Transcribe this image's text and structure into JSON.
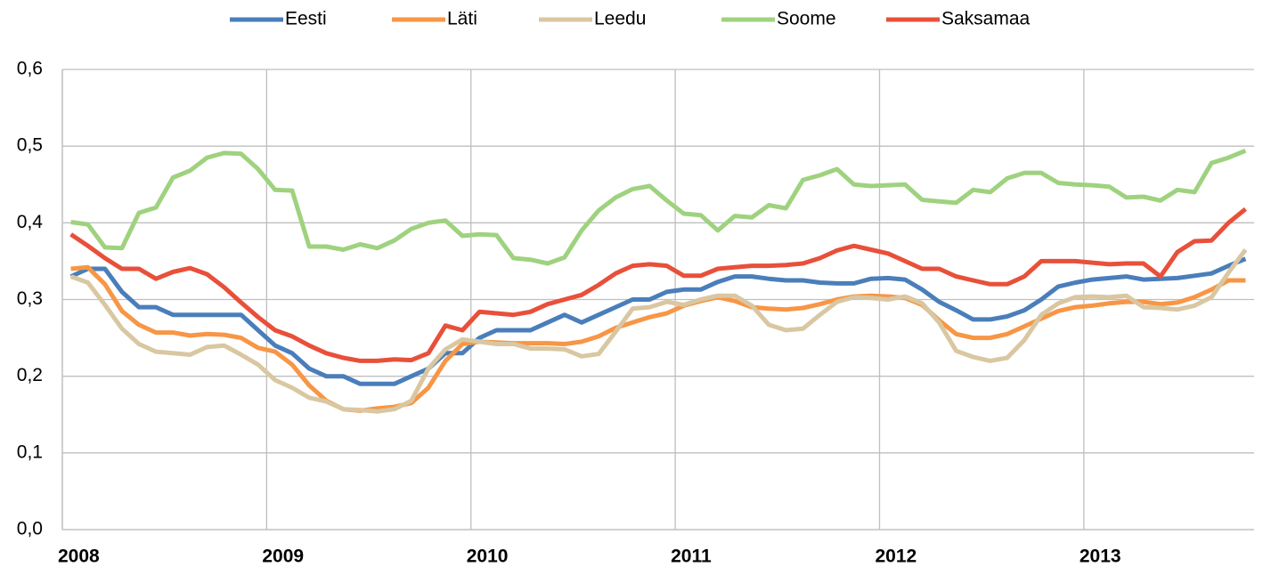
{
  "chart_data": {
    "type": "line",
    "categories": [
      "2008",
      null,
      null,
      null,
      null,
      null,
      null,
      null,
      null,
      null,
      null,
      null,
      "2009",
      null,
      null,
      null,
      null,
      null,
      null,
      null,
      null,
      null,
      null,
      null,
      "2010",
      null,
      null,
      null,
      null,
      null,
      null,
      null,
      null,
      null,
      null,
      null,
      "2011",
      null,
      null,
      null,
      null,
      null,
      null,
      null,
      null,
      null,
      null,
      null,
      "2012",
      null,
      null,
      null,
      null,
      null,
      null,
      null,
      null,
      null,
      null,
      null,
      "2013",
      null,
      null,
      null,
      null,
      null,
      null,
      null,
      null,
      null
    ],
    "series": [
      {
        "name": "Eesti",
        "color": "#4a7ebb",
        "values": [
          0.33,
          0.34,
          0.34,
          0.31,
          0.29,
          0.29,
          0.28,
          0.28,
          0.28,
          0.28,
          0.28,
          0.26,
          0.24,
          0.23,
          0.21,
          0.2,
          0.2,
          0.19,
          0.19,
          0.19,
          0.2,
          0.21,
          0.23,
          0.23,
          0.25,
          0.26,
          0.26,
          0.26,
          0.27,
          0.28,
          0.27,
          0.28,
          0.29,
          0.3,
          0.3,
          0.31,
          0.313,
          0.313,
          0.323,
          0.33,
          0.33,
          0.327,
          0.325,
          0.325,
          0.322,
          0.321,
          0.321,
          0.327,
          0.328,
          0.326,
          0.313,
          0.297,
          0.286,
          0.274,
          0.274,
          0.278,
          0.286,
          0.3,
          0.317,
          0.322,
          0.326,
          0.328,
          0.33,
          0.326,
          0.327,
          0.328,
          0.331,
          0.334,
          0.344,
          0.353
        ]
      },
      {
        "name": "Läti",
        "color": "#f79646",
        "values": [
          0.34,
          0.342,
          0.32,
          0.285,
          0.267,
          0.257,
          0.257,
          0.253,
          0.255,
          0.254,
          0.25,
          0.237,
          0.232,
          0.215,
          0.188,
          0.168,
          0.157,
          0.155,
          0.158,
          0.16,
          0.165,
          0.185,
          0.22,
          0.242,
          0.245,
          0.244,
          0.243,
          0.243,
          0.243,
          0.242,
          0.245,
          0.252,
          0.263,
          0.27,
          0.277,
          0.282,
          0.292,
          0.298,
          0.303,
          0.298,
          0.29,
          0.288,
          0.287,
          0.289,
          0.294,
          0.3,
          0.304,
          0.305,
          0.304,
          0.302,
          0.293,
          0.273,
          0.255,
          0.25,
          0.25,
          0.255,
          0.265,
          0.275,
          0.285,
          0.29,
          0.292,
          0.295,
          0.297,
          0.297,
          0.294,
          0.296,
          0.303,
          0.313,
          0.325,
          0.325
        ]
      },
      {
        "name": "Leedu",
        "color": "#d9c7a2",
        "values": [
          0.33,
          0.322,
          0.293,
          0.262,
          0.242,
          0.232,
          0.23,
          0.228,
          0.238,
          0.24,
          0.228,
          0.215,
          0.195,
          0.185,
          0.172,
          0.167,
          0.157,
          0.156,
          0.154,
          0.157,
          0.168,
          0.21,
          0.235,
          0.248,
          0.245,
          0.242,
          0.242,
          0.236,
          0.236,
          0.235,
          0.226,
          0.229,
          0.258,
          0.288,
          0.29,
          0.297,
          0.293,
          0.3,
          0.305,
          0.305,
          0.292,
          0.267,
          0.26,
          0.262,
          0.28,
          0.297,
          0.303,
          0.302,
          0.3,
          0.304,
          0.295,
          0.27,
          0.233,
          0.225,
          0.22,
          0.224,
          0.247,
          0.28,
          0.295,
          0.303,
          0.304,
          0.303,
          0.305,
          0.29,
          0.289,
          0.287,
          0.292,
          0.303,
          0.335,
          0.365
        ]
      },
      {
        "name": "Soome",
        "color": "#9fd27f",
        "values": [
          0.401,
          0.398,
          0.368,
          0.367,
          0.413,
          0.42,
          0.459,
          0.468,
          0.485,
          0.491,
          0.49,
          0.47,
          0.443,
          0.442,
          0.369,
          0.369,
          0.365,
          0.372,
          0.367,
          0.377,
          0.392,
          0.4,
          0.403,
          0.383,
          0.385,
          0.384,
          0.354,
          0.352,
          0.347,
          0.355,
          0.39,
          0.416,
          0.433,
          0.444,
          0.448,
          0.429,
          0.412,
          0.41,
          0.39,
          0.409,
          0.407,
          0.423,
          0.419,
          0.456,
          0.462,
          0.47,
          0.45,
          0.448,
          0.449,
          0.45,
          0.43,
          0.428,
          0.426,
          0.443,
          0.44,
          0.458,
          0.465,
          0.465,
          0.452,
          0.45,
          0.449,
          0.447,
          0.433,
          0.434,
          0.429,
          0.443,
          0.44,
          0.478,
          0.485,
          0.494
        ]
      },
      {
        "name": "Saksamaa",
        "color": "#e8503a",
        "values": [
          0.385,
          0.37,
          0.354,
          0.34,
          0.34,
          0.327,
          0.336,
          0.341,
          0.333,
          0.316,
          0.296,
          0.277,
          0.26,
          0.252,
          0.24,
          0.23,
          0.224,
          0.22,
          0.22,
          0.222,
          0.221,
          0.23,
          0.266,
          0.26,
          0.284,
          0.282,
          0.28,
          0.284,
          0.294,
          0.3,
          0.306,
          0.319,
          0.334,
          0.344,
          0.346,
          0.344,
          0.331,
          0.331,
          0.34,
          0.342,
          0.344,
          0.344,
          0.345,
          0.347,
          0.354,
          0.364,
          0.37,
          0.365,
          0.36,
          0.35,
          0.34,
          0.34,
          0.33,
          0.325,
          0.32,
          0.32,
          0.33,
          0.35,
          0.35,
          0.35,
          0.348,
          0.346,
          0.347,
          0.347,
          0.33,
          0.362,
          0.376,
          0.377,
          0.4,
          0.418
        ]
      }
    ],
    "ylim": [
      0,
      0.6
    ],
    "yticks": [
      {
        "value": 0,
        "label": "0,0"
      },
      {
        "value": 0.1,
        "label": "0,1"
      },
      {
        "value": 0.2,
        "label": "0,2"
      },
      {
        "value": 0.3,
        "label": "0,3"
      },
      {
        "value": 0.4,
        "label": "0,4"
      },
      {
        "value": 0.5,
        "label": "0,5"
      },
      {
        "value": 0.6,
        "label": "0,6"
      }
    ],
    "grid": true,
    "legend": "top"
  }
}
